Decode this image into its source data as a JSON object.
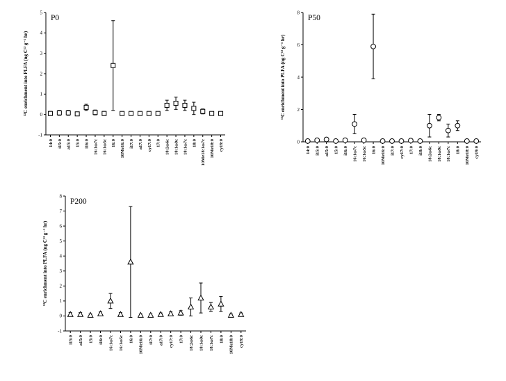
{
  "figure": {
    "background": "#ffffff",
    "axis_color": "#000000",
    "marker_fill": "#ffffff"
  },
  "chart_data": [
    {
      "type": "scatter",
      "title": "P0",
      "marker": "square",
      "xlabel": "",
      "ylabel": "¹³C enrichment into PLFA (ng C¹³ g⁻¹ hr)",
      "ylim": [
        -1,
        5
      ],
      "yticks": [
        -1,
        0,
        1,
        2,
        3,
        4,
        5
      ],
      "grid": false,
      "legend": null,
      "categories": [
        "14:0",
        "i15:0",
        "a15:0",
        "15:0",
        "i16:0",
        "16:1ω7c",
        "16:1ω5c",
        "16:0",
        "10Me16:0",
        "i17:0",
        "a17:0",
        "cy17:0",
        "17:0",
        "18:2ω6c",
        "18:1ω9c",
        "18:1ω7c",
        "18:0",
        "10Me18:1ω7c",
        "10Me18:0",
        "cy19:0"
      ],
      "values": [
        0.05,
        0.08,
        0.08,
        0.03,
        0.35,
        0.1,
        0.05,
        2.4,
        0.05,
        0.05,
        0.05,
        0.05,
        0.05,
        0.45,
        0.55,
        0.45,
        0.3,
        0.15,
        0.05,
        0.05
      ],
      "errors": [
        0.1,
        0.12,
        0.12,
        0.08,
        0.15,
        0.12,
        0.1,
        2.2,
        0.08,
        0.08,
        0.08,
        0.08,
        0.08,
        0.25,
        0.3,
        0.25,
        0.3,
        0.12,
        0.08,
        0.08
      ]
    },
    {
      "type": "scatter",
      "title": "P50",
      "marker": "circle",
      "xlabel": "",
      "ylabel": "¹³C enrichment into PLFA (ng C¹³ g⁻¹ hr)",
      "ylim": [
        0,
        8
      ],
      "yticks": [
        0,
        2,
        4,
        6,
        8
      ],
      "grid": false,
      "legend": null,
      "categories": [
        "14:0",
        "i15:0",
        "a15:0",
        "15:0",
        "i16:0",
        "16:1ω7c",
        "16:1ω5c",
        "16:0",
        "10Me16:0",
        "i17:0",
        "cy17:0",
        "17:0",
        "i18:0",
        "18:2ω6c",
        "18:1ω9c",
        "18:1ω7c",
        "18:0",
        "10Me18:0",
        "cy19:0"
      ],
      "values": [
        0.05,
        0.1,
        0.15,
        0.05,
        0.1,
        1.1,
        0.1,
        5.9,
        0.05,
        0.05,
        0.05,
        0.08,
        0.05,
        1.0,
        1.5,
        0.7,
        1.0,
        0.05,
        0.05
      ],
      "errors": [
        0.08,
        0.1,
        0.1,
        0.08,
        0.1,
        0.6,
        0.08,
        2.0,
        0.05,
        0.05,
        0.05,
        0.08,
        0.05,
        0.7,
        0.2,
        0.4,
        0.3,
        0.05,
        0.05
      ]
    },
    {
      "type": "scatter",
      "title": "P200",
      "marker": "triangle",
      "xlabel": "",
      "ylabel": "¹³C enrichment into PLFA (ng C¹³ g⁻¹ hr)",
      "ylim": [
        -1,
        8
      ],
      "yticks": [
        -1,
        0,
        1,
        2,
        3,
        4,
        5,
        6,
        7,
        8
      ],
      "grid": false,
      "legend": null,
      "categories": [
        "i15:0",
        "a15:0",
        "15:0",
        "i16:0",
        "16:1ω7c",
        "16:1ω5c",
        "16:0",
        "10Me16:0",
        "i17:0",
        "a17:0",
        "cy17:0",
        "17:0",
        "18:2ω6c",
        "18:1ω9c",
        "18:1ω7c",
        "18:0",
        "10Me18:0",
        "cy19:0"
      ],
      "values": [
        0.1,
        0.1,
        0.05,
        0.15,
        1.0,
        0.1,
        3.6,
        0.05,
        0.05,
        0.1,
        0.15,
        0.2,
        0.6,
        1.2,
        0.6,
        0.8,
        0.05,
        0.1
      ],
      "errors": [
        0.12,
        0.12,
        0.08,
        0.12,
        0.5,
        0.12,
        3.7,
        0.08,
        0.08,
        0.1,
        0.12,
        0.15,
        0.6,
        1.0,
        0.3,
        0.5,
        0.08,
        0.1
      ]
    }
  ]
}
